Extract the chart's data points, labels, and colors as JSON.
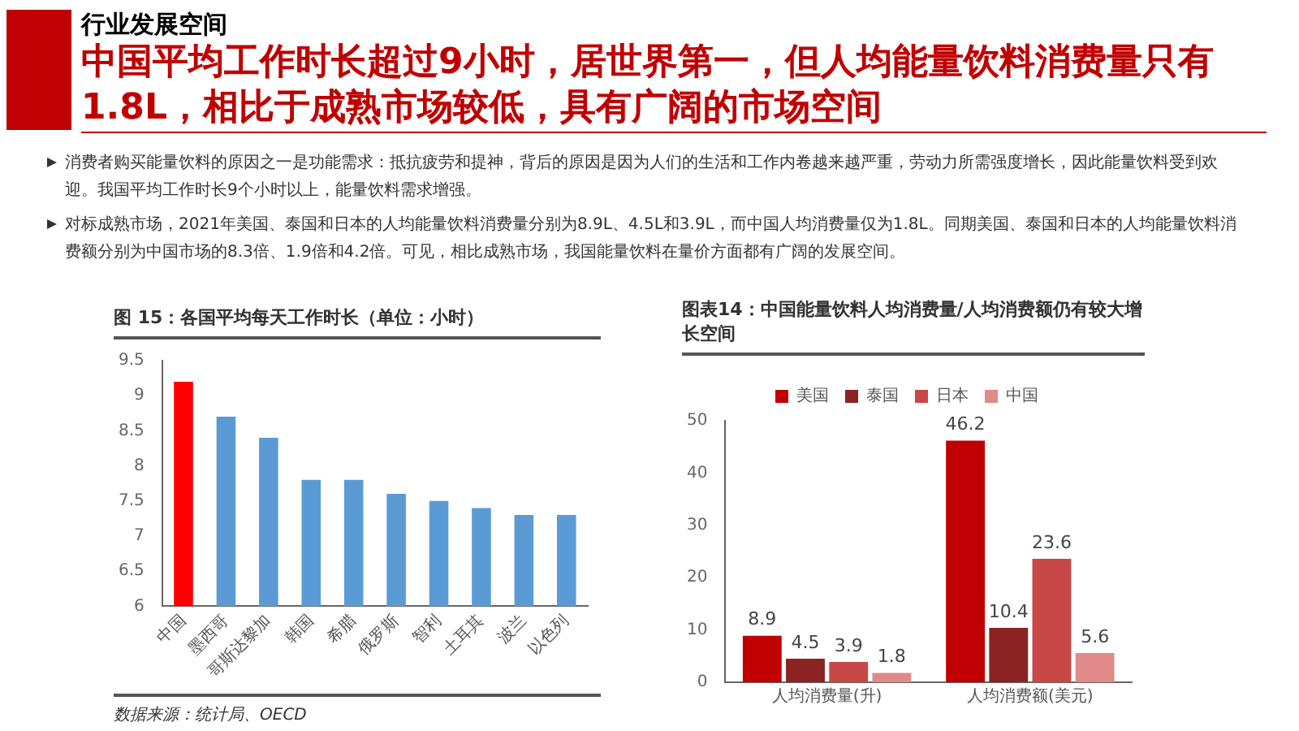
{
  "chart_data": [
    {
      "type": "other",
      "title": "行业发展空间",
      "subtitle": "中国平均工作时长超过9小时，居世界第一，但人均能量饮料消费量只有1.8L，相比于成熟市场较低，具有广阔的市场空间",
      "annotations": [
        "消费者购买能量饮料的原因之一是功能需求：抵抗疲劳和提神，背后的原因是因为人们的生活和工作内卷越来越严重，劳动力所需强度增长，因此能量饮料受到欢迎。我国平均工作时长9个小时以上，能量饮料需求增强。",
        "对标成熟市场，2021年美国、泰国和日本的人均能量饮料消费量分别为8.9L、4.5L和3.9L，而中国人均消费量仅为1.8L。同期美国、泰国和日本的人均能量饮料消费额分别为中国市场的8.3倍、1.9倍和4.2倍。可见，相比成熟市场，我国能量饮料在量价方面都有广阔的发展空间。"
      ]
    },
    {
      "type": "bar",
      "title": "图 15：各国平均每天工作时长（单位：小时）",
      "categories": [
        "中国",
        "墨西哥",
        "哥斯达黎加",
        "韩国",
        "希腊",
        "俄罗斯",
        "智利",
        "土耳其",
        "波兰",
        "以色列"
      ],
      "values": [
        9.2,
        8.7,
        8.4,
        7.8,
        7.8,
        7.6,
        7.5,
        7.4,
        7.3,
        7.3
      ],
      "colors": [
        "#ff0000",
        "#5b9bd5",
        "#5b9bd5",
        "#5b9bd5",
        "#5b9bd5",
        "#5b9bd5",
        "#5b9bd5",
        "#5b9bd5",
        "#5b9bd5",
        "#5b9bd5"
      ],
      "ylim": [
        6,
        9.5
      ],
      "yticks": [
        6,
        6.5,
        7,
        7.5,
        8,
        8.5,
        9,
        9.5
      ],
      "grid": false,
      "annotations": [
        "数据来源：统计局、OECD"
      ]
    },
    {
      "type": "bar",
      "title": "图表14：中国能量饮料人均消费量/人均消费额仍有较大增长空间",
      "categories": [
        "人均消费量(升)",
        "人均消费额(美元)"
      ],
      "series": [
        {
          "name": "美国",
          "color": "#c00000",
          "values": [
            8.9,
            46.2
          ]
        },
        {
          "name": "泰国",
          "color": "#8b2323",
          "values": [
            4.5,
            10.4
          ]
        },
        {
          "name": "日本",
          "color": "#c84848",
          "values": [
            3.9,
            23.6
          ]
        },
        {
          "name": "中国",
          "color": "#e08a8a",
          "values": [
            1.8,
            5.6
          ]
        }
      ],
      "ylim": [
        0,
        50
      ],
      "yticks": [
        0,
        10,
        20,
        30,
        40,
        50
      ],
      "grid": false,
      "legend": "top",
      "data_labels": true
    }
  ]
}
